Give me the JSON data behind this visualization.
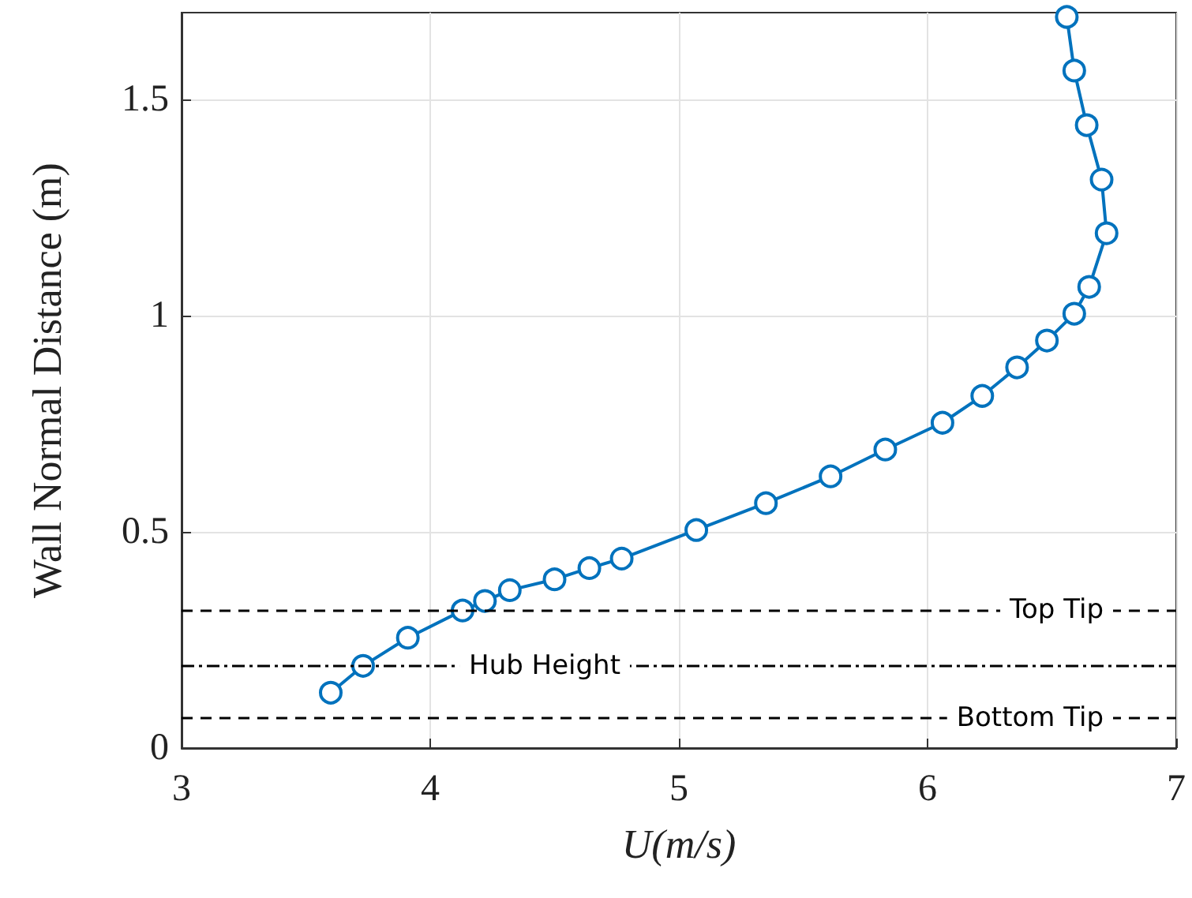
{
  "chart_data": {
    "type": "line",
    "xlabel": "U(m/s)",
    "ylabel": "Wall Normal Distance (m)",
    "x": [
      3.6,
      3.73,
      3.91,
      4.13,
      4.22,
      4.32,
      4.5,
      4.64,
      4.77,
      5.07,
      5.35,
      5.61,
      5.83,
      6.06,
      6.22,
      6.36,
      6.48,
      6.59,
      6.65,
      6.72,
      6.7,
      6.64,
      6.59,
      6.56
    ],
    "series": [
      {
        "color": "#0072bd",
        "values": [
          0.128,
          0.19,
          0.255,
          0.318,
          0.34,
          0.365,
          0.39,
          0.416,
          0.438,
          0.504,
          0.566,
          0.628,
          0.69,
          0.752,
          0.814,
          0.88,
          0.942,
          1.004,
          1.066,
          1.19,
          1.314,
          1.44,
          1.566,
          1.69
        ]
      }
    ],
    "marker": "circle",
    "line_style": "solid",
    "grid": true,
    "xlim": [
      3,
      7
    ],
    "xticks": [
      3,
      4,
      5,
      6,
      7
    ],
    "ylim": [
      0,
      1.7
    ],
    "yticks": [
      0,
      0.5,
      1,
      1.5
    ],
    "ref_lines": [
      {
        "axis": "y",
        "value": 0.318,
        "label": "Top Tip",
        "color": "#000000",
        "line_style": "dashed"
      },
      {
        "axis": "y",
        "value": 0.19,
        "label": "Hub Height",
        "color": "#000000",
        "line_style": "dashdot"
      },
      {
        "axis": "y",
        "value": 0.066,
        "label": "Bottom Tip",
        "color": "#000000",
        "line_style": "dashed"
      }
    ]
  }
}
